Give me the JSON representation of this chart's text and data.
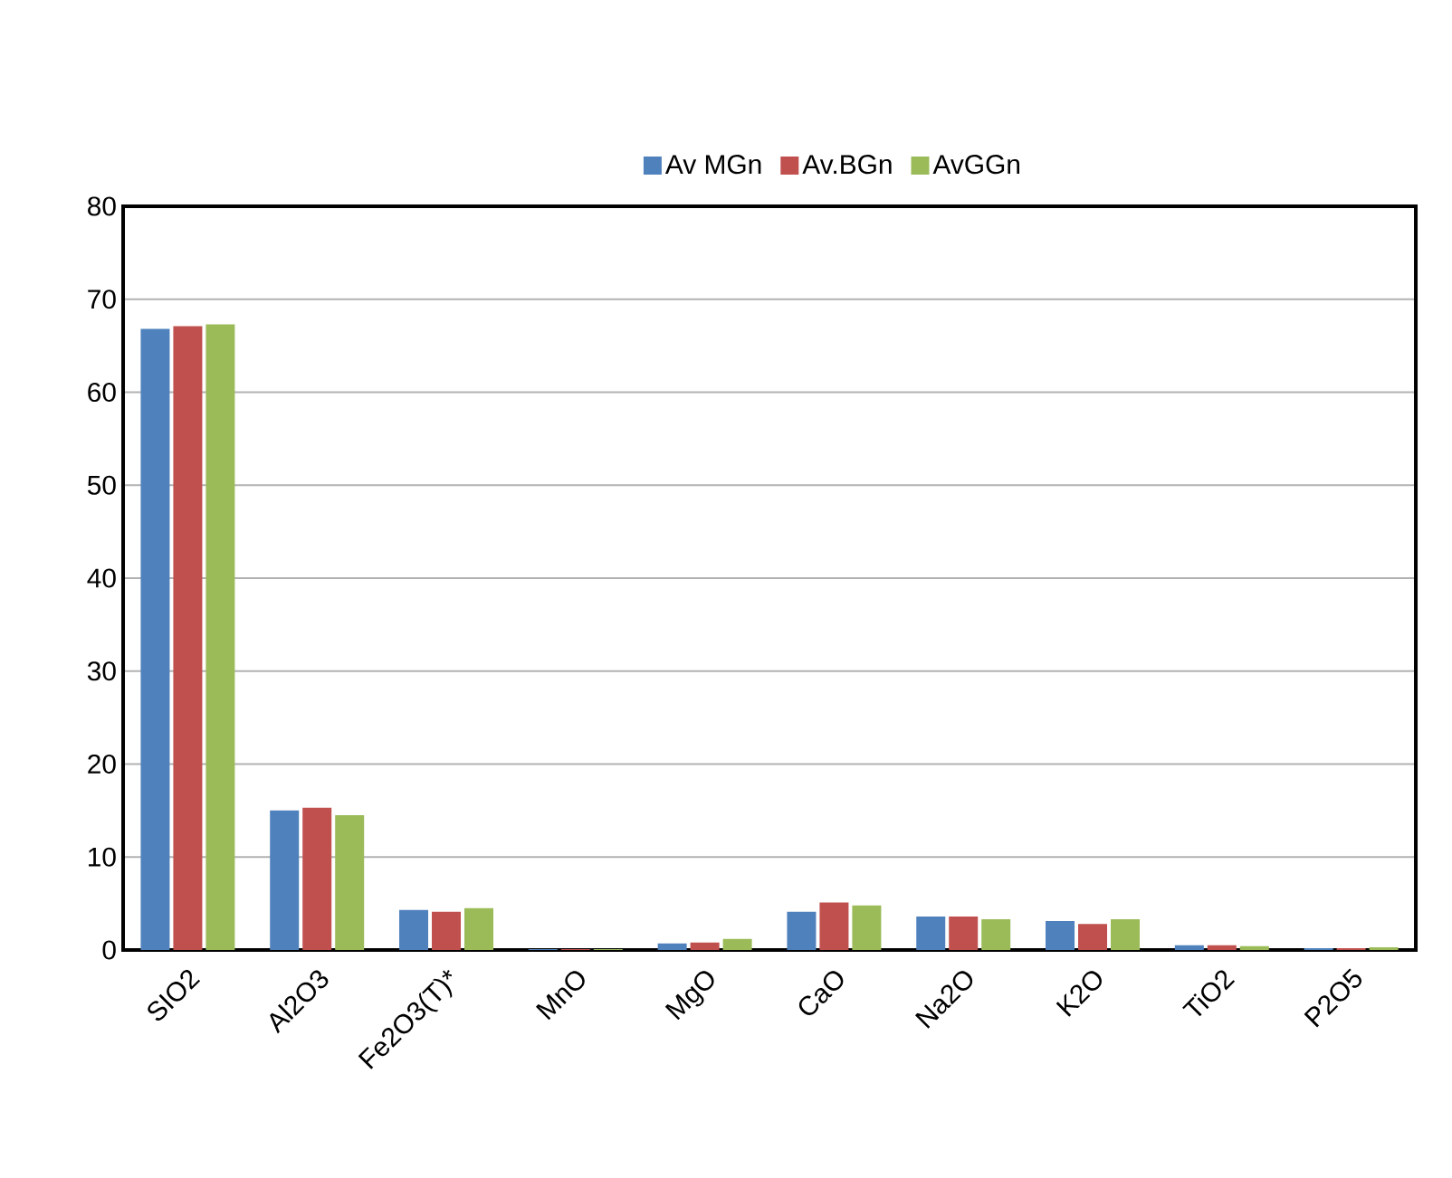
{
  "chart_data": {
    "type": "bar",
    "categories": [
      "SIO2",
      "Al2O3",
      "Fe2O3(T)*",
      "MnO",
      "MgO",
      "CaO",
      "Na2O",
      "K2O",
      "TiO2",
      "P2O5"
    ],
    "series": [
      {
        "name": "Av MGn",
        "color": "#4f81bd",
        "values": [
          66.8,
          15.0,
          4.3,
          0.1,
          0.7,
          4.1,
          3.6,
          3.1,
          0.5,
          0.2
        ]
      },
      {
        "name": "Av.BGn",
        "color": "#c0504d",
        "values": [
          67.1,
          15.3,
          4.1,
          0.1,
          0.8,
          5.1,
          3.6,
          2.8,
          0.5,
          0.2
        ]
      },
      {
        "name": "AvGGn",
        "color": "#9bbb59",
        "values": [
          67.3,
          14.5,
          4.5,
          0.1,
          1.2,
          4.8,
          3.3,
          3.3,
          0.4,
          0.3
        ]
      }
    ],
    "ylim": [
      0,
      80
    ],
    "yticks": [
      0,
      10,
      20,
      30,
      40,
      50,
      60,
      70,
      80
    ],
    "grid": "y",
    "legend": "top"
  }
}
